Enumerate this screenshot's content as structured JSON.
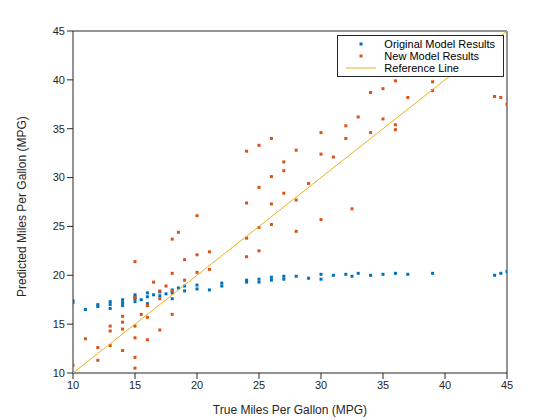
{
  "chart_data": {
    "type": "scatter",
    "x_label": "True Miles Per Gallon (MPG)",
    "y_label": "Predicted Miles Per Gallon (MPG)",
    "xlim": [
      10,
      45
    ],
    "xticks": [
      10,
      15,
      20,
      25,
      30,
      35,
      40,
      45
    ],
    "ylim": [
      10,
      45
    ],
    "yticks": [
      10,
      15,
      20,
      25,
      30,
      35,
      40,
      45
    ],
    "grid": false,
    "legend": "northeast",
    "series": [
      {
        "name": "Original Model Results",
        "color": "#0072BD",
        "type": "scatter",
        "marker": "point",
        "x": [
          10,
          10,
          11,
          12,
          12,
          13,
          13,
          13,
          14,
          14,
          14,
          15,
          15,
          15,
          15,
          15.5,
          16,
          16,
          16,
          16.5,
          17,
          17,
          17.5,
          18,
          18,
          18,
          18.5,
          19,
          19,
          20,
          20,
          21,
          22,
          22,
          24,
          24,
          25,
          25,
          26,
          26,
          27,
          27,
          28,
          29,
          30,
          30,
          31,
          32,
          32.5,
          33,
          34,
          35,
          36,
          37,
          39,
          44,
          44.5,
          45
        ],
        "values": [
          17.2,
          17.4,
          16.5,
          17.0,
          16.8,
          17.3,
          17.0,
          16.6,
          17.5,
          17.2,
          16.9,
          17.6,
          17.8,
          17.3,
          18.0,
          17.5,
          17.8,
          18.2,
          17.1,
          18.0,
          18.3,
          17.9,
          18.1,
          18.5,
          18.2,
          17.6,
          18.7,
          18.4,
          18.9,
          19.0,
          18.6,
          18.5,
          19.2,
          18.9,
          19.5,
          19.3,
          19.6,
          19.3,
          19.8,
          19.5,
          19.6,
          19.9,
          19.9,
          19.7,
          20.1,
          19.6,
          20.0,
          20.1,
          19.9,
          20.2,
          20.0,
          20.1,
          20.2,
          20.1,
          20.2,
          20.0,
          20.2,
          20.4
        ]
      },
      {
        "name": "New Model Results",
        "color": "#D95319",
        "type": "scatter",
        "marker": "point",
        "x": [
          10,
          11,
          12,
          12,
          13,
          13,
          13,
          14,
          14,
          14,
          14,
          15,
          15,
          15,
          15,
          15,
          15,
          15.5,
          16,
          16,
          16,
          16.5,
          17,
          17,
          17,
          17.5,
          18,
          18,
          18,
          18,
          18.5,
          19,
          19,
          20,
          20,
          20,
          21,
          21,
          24,
          24,
          24,
          24,
          25,
          25,
          25,
          25,
          26,
          26,
          26,
          26,
          27,
          27,
          27,
          28,
          28,
          28,
          29,
          30,
          30,
          30,
          31,
          32,
          32,
          32.5,
          33,
          34,
          34,
          35,
          35,
          36,
          36,
          36,
          37,
          39,
          39,
          44,
          44.5,
          45
        ],
        "values": [
          10.8,
          13.5,
          12.6,
          11.3,
          14.8,
          14.3,
          12.8,
          15.8,
          15.2,
          14.5,
          12.3,
          21.4,
          17.7,
          14.8,
          13.6,
          11.6,
          10.5,
          16.0,
          15.7,
          13.4,
          16.9,
          19.3,
          18.4,
          17.6,
          14.4,
          18.9,
          23.7,
          20.2,
          18.4,
          16.0,
          24.4,
          21.6,
          19.5,
          26.1,
          22.1,
          20.3,
          22.4,
          20.6,
          32.7,
          27.4,
          23.8,
          21.9,
          33.3,
          29.0,
          24.9,
          22.5,
          34.0,
          30.1,
          27.3,
          25.2,
          30.7,
          28.4,
          31.6,
          32.8,
          27.7,
          24.5,
          29.4,
          34.6,
          32.4,
          25.7,
          32.1,
          35.3,
          34.0,
          26.8,
          36.2,
          38.7,
          34.6,
          39.1,
          36.0,
          35.4,
          34.9,
          39.9,
          38.2,
          38.9,
          39.8,
          38.3,
          38.2,
          37.5
        ]
      },
      {
        "name": "Reference Line",
        "color": "#EDB120",
        "type": "line",
        "line_style": "solid",
        "x": [
          10,
          45
        ],
        "values": [
          10,
          45
        ]
      }
    ]
  }
}
